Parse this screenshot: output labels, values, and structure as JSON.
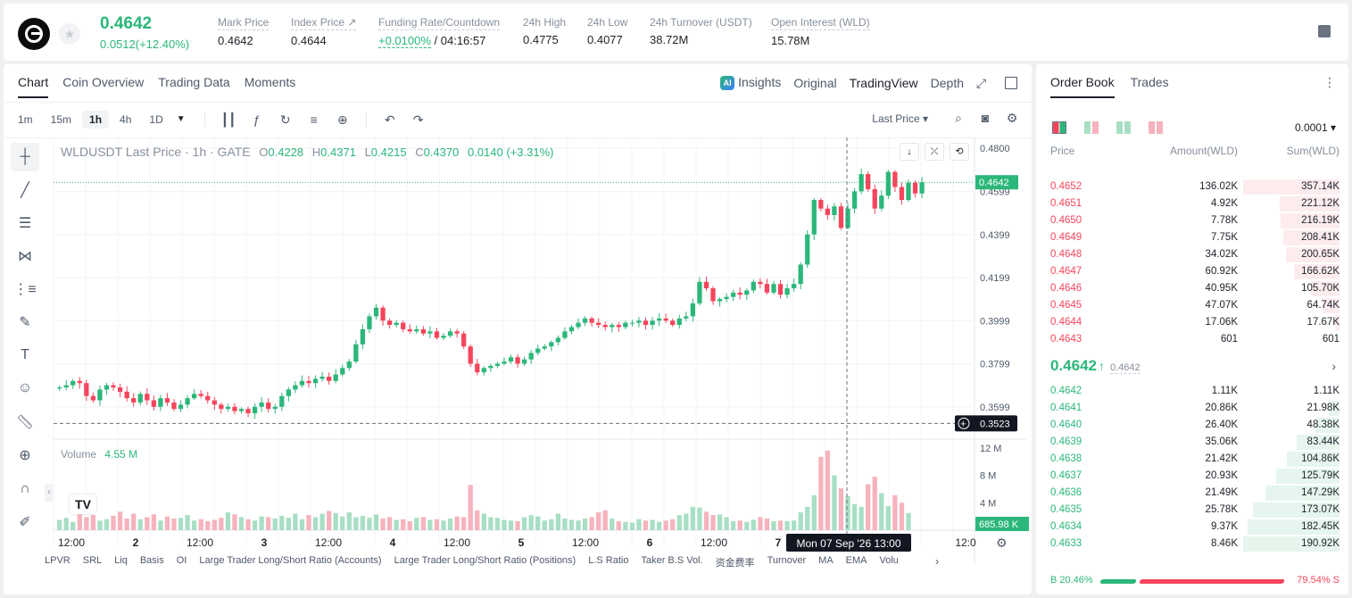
{
  "header": {
    "price": "0.4642",
    "change": "0.0512(+12.40%)",
    "stats": [
      {
        "label": "Mark Price",
        "value": "0.4642"
      },
      {
        "label": "Index Price ↗",
        "value": "0.4644"
      },
      {
        "label": "Funding Rate/Countdown",
        "rate": "+0.0100%",
        "value": " / 04:16:57"
      },
      {
        "label": "24h High",
        "value": "0.4775"
      },
      {
        "label": "24h Low",
        "value": "0.4077"
      },
      {
        "label": "24h Turnover (USDT)",
        "value": "38.72M"
      },
      {
        "label": "Open Interest (WLD)",
        "value": "15.78M"
      }
    ]
  },
  "chart_tabs": [
    "Chart",
    "Coin Overview",
    "Trading Data",
    "Moments"
  ],
  "view_tabs": {
    "insights": "Insights",
    "ai_badge": "AI",
    "original": "Original",
    "tradingview": "TradingView",
    "depth": "Depth"
  },
  "intervals": [
    "1m",
    "15m",
    "1h",
    "4h",
    "1D"
  ],
  "price_type": "Last Price ▾",
  "legend": {
    "symbol": "WLDUSDT Last Price · 1h · GATE",
    "o_label": "O",
    "o": "0.4228",
    "h_label": "H",
    "h": "0.4371",
    "l_label": "L",
    "l": "0.4215",
    "c_label": "C",
    "c": "0.4370",
    "chg": "0.0140 (+3.31%)"
  },
  "volume_legend": {
    "label": "Volume",
    "value": "4.55 M"
  },
  "indicators": [
    "LPVR",
    "SRL",
    "Liq",
    "Basis",
    "OI",
    "Large Trader Long/Short Ratio (Accounts)",
    "Large Trader Long/Short Ratio (Positions)",
    "L.S Ratio",
    "Taker B.S Vol.",
    "资金费率",
    "Turnover",
    "MA",
    "EMA",
    "Volu"
  ],
  "chart_data": {
    "type": "candlestick",
    "symbol": "WLDUSDT",
    "interval": "1h",
    "price_ticks": [
      "0.4800",
      "0.4599",
      "0.4399",
      "0.4199",
      "0.3999",
      "0.3799",
      "0.3599"
    ],
    "price_range": [
      0.345,
      0.485
    ],
    "current_price_label": "0.4642",
    "cursor_price_label": "0.3523",
    "volume_ticks": [
      "12 M",
      "8 M",
      "4 M"
    ],
    "volume_current_label": "685.98 K",
    "time_ticks": [
      "12:00",
      "2",
      "12:00",
      "3",
      "12:00",
      "4",
      "12:00",
      "5",
      "12:00",
      "6",
      "12:00",
      "7",
      "12:0"
    ],
    "crosshair_time": "Mon 07 Sep '26   13:00",
    "close_series": [
      0.369,
      0.37,
      0.372,
      0.371,
      0.365,
      0.363,
      0.368,
      0.37,
      0.369,
      0.367,
      0.364,
      0.362,
      0.366,
      0.363,
      0.36,
      0.364,
      0.362,
      0.359,
      0.361,
      0.364,
      0.366,
      0.365,
      0.363,
      0.361,
      0.359,
      0.36,
      0.358,
      0.359,
      0.357,
      0.36,
      0.362,
      0.359,
      0.36,
      0.365,
      0.368,
      0.37,
      0.372,
      0.371,
      0.373,
      0.374,
      0.372,
      0.375,
      0.378,
      0.381,
      0.389,
      0.396,
      0.402,
      0.406,
      0.4,
      0.398,
      0.399,
      0.396,
      0.395,
      0.396,
      0.394,
      0.395,
      0.392,
      0.393,
      0.395,
      0.394,
      0.388,
      0.38,
      0.376,
      0.378,
      0.379,
      0.38,
      0.381,
      0.383,
      0.38,
      0.382,
      0.385,
      0.387,
      0.388,
      0.39,
      0.392,
      0.395,
      0.397,
      0.399,
      0.401,
      0.399,
      0.398,
      0.397,
      0.398,
      0.397,
      0.399,
      0.399,
      0.4,
      0.398,
      0.4,
      0.401,
      0.4,
      0.398,
      0.401,
      0.402,
      0.408,
      0.418,
      0.415,
      0.409,
      0.41,
      0.411,
      0.413,
      0.412,
      0.414,
      0.418,
      0.417,
      0.413,
      0.417,
      0.412,
      0.415,
      0.417,
      0.426,
      0.44,
      0.456,
      0.452,
      0.449,
      0.453,
      0.443,
      0.452,
      0.46,
      0.468,
      0.461,
      0.452,
      0.458,
      0.469,
      0.462,
      0.456,
      0.464,
      0.459,
      0.4642
    ],
    "volume_series": [
      1.5,
      1.8,
      1.2,
      2.5,
      1.9,
      2.2,
      1.4,
      1.6,
      2.1,
      2.7,
      1.7,
      2.4,
      1.6,
      1.9,
      2.3,
      1.4,
      2.0,
      1.7,
      1.8,
      2.2,
      1.4,
      1.6,
      1.3,
      1.5,
      1.8,
      2.6,
      2.3,
      1.9,
      1.6,
      1.4,
      2.0,
      1.9,
      1.7,
      2.1,
      1.8,
      2.4,
      1.6,
      2.2,
      1.9,
      2.4,
      2.8,
      2.5,
      2.0,
      2.6,
      1.9,
      2.1,
      1.8,
      2.3,
      1.7,
      1.9,
      1.5,
      1.6,
      1.3,
      1.8,
      1.9,
      1.5,
      1.6,
      1.4,
      1.7,
      2.0,
      1.9,
      6.6,
      2.9,
      2.4,
      1.9,
      1.8,
      1.5,
      1.4,
      1.3,
      1.9,
      2.2,
      2.0,
      1.4,
      1.6,
      2.4,
      1.7,
      1.5,
      1.4,
      1.7,
      1.9,
      2.6,
      2.9,
      1.7,
      1.3,
      1.2,
      1.1,
      1.6,
      1.4,
      1.5,
      1.2,
      1.4,
      1.6,
      2.2,
      2.4,
      3.4,
      3.3,
      2.7,
      2.2,
      2.3,
      1.9,
      1.3,
      1.4,
      1.2,
      1.5,
      1.9,
      1.7,
      1.3,
      1.4,
      1.3,
      1.4,
      2.6,
      3.4,
      5.1,
      10.7,
      11.6,
      8.0,
      6.1,
      5.0,
      3.8,
      3.4,
      6.7,
      7.8,
      5.4,
      3.5,
      5.1,
      4.0,
      2.5
    ],
    "volume_unit": "M"
  },
  "orderbook": {
    "tabs": [
      "Order Book",
      "Trades"
    ],
    "precision": "0.0001 ▾",
    "col_price": "Price",
    "col_amount": "Amount(WLD)",
    "col_sum": "Sum(WLD)",
    "asks": [
      {
        "price": "0.4652",
        "amount": "136.02K",
        "sum": "357.14K",
        "depth": 1.0
      },
      {
        "price": "0.4651",
        "amount": "4.92K",
        "sum": "221.12K",
        "depth": 0.62
      },
      {
        "price": "0.4650",
        "amount": "7.78K",
        "sum": "216.19K",
        "depth": 0.61
      },
      {
        "price": "0.4649",
        "amount": "7.75K",
        "sum": "208.41K",
        "depth": 0.58
      },
      {
        "price": "0.4648",
        "amount": "34.02K",
        "sum": "200.65K",
        "depth": 0.56
      },
      {
        "price": "0.4647",
        "amount": "60.92K",
        "sum": "166.62K",
        "depth": 0.47
      },
      {
        "price": "0.4646",
        "amount": "40.95K",
        "sum": "105.70K",
        "depth": 0.3
      },
      {
        "price": "0.4645",
        "amount": "47.07K",
        "sum": "64.74K",
        "depth": 0.18
      },
      {
        "price": "0.4644",
        "amount": "17.06K",
        "sum": "17.67K",
        "depth": 0.05
      },
      {
        "price": "0.4643",
        "amount": "601",
        "sum": "601",
        "depth": 0.0
      }
    ],
    "mid_price": "0.4642",
    "mark_price": "0.4642",
    "bids": [
      {
        "price": "0.4642",
        "amount": "1.11K",
        "sum": "1.11K",
        "depth": 0.0
      },
      {
        "price": "0.4641",
        "amount": "20.86K",
        "sum": "21.98K",
        "depth": 0.11
      },
      {
        "price": "0.4640",
        "amount": "26.40K",
        "sum": "48.38K",
        "depth": 0.25
      },
      {
        "price": "0.4639",
        "amount": "35.06K",
        "sum": "83.44K",
        "depth": 0.44
      },
      {
        "price": "0.4638",
        "amount": "21.42K",
        "sum": "104.86K",
        "depth": 0.55
      },
      {
        "price": "0.4637",
        "amount": "20.93K",
        "sum": "125.79K",
        "depth": 0.66
      },
      {
        "price": "0.4636",
        "amount": "21.49K",
        "sum": "147.29K",
        "depth": 0.77
      },
      {
        "price": "0.4635",
        "amount": "25.78K",
        "sum": "173.07K",
        "depth": 0.9
      },
      {
        "price": "0.4634",
        "amount": "9.37K",
        "sum": "182.45K",
        "depth": 0.95
      },
      {
        "price": "0.4633",
        "amount": "8.46K",
        "sum": "190.92K",
        "depth": 1.0
      }
    ],
    "buy_ratio": "B 20.46%",
    "sell_ratio": "79.54% S"
  },
  "colors": {
    "up": "#2bb77a",
    "down": "#f5455c",
    "up_vol": "#a8dfc4",
    "down_vol": "#f6b3bd"
  }
}
